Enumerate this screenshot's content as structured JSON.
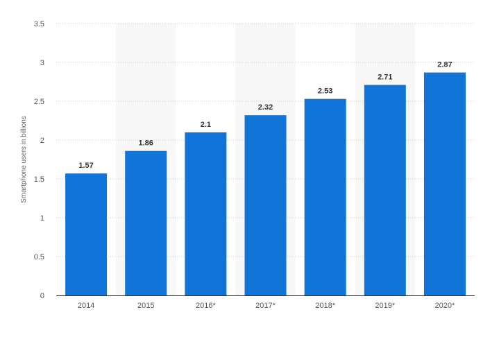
{
  "chart_data": {
    "type": "bar",
    "categories": [
      "2014",
      "2015",
      "2016*",
      "2017*",
      "2018*",
      "2019*",
      "2020*"
    ],
    "values": [
      1.57,
      1.86,
      2.1,
      2.32,
      2.53,
      2.71,
      2.87
    ],
    "value_labels": [
      "1.57",
      "1.86",
      "2.1",
      "2.32",
      "2.53",
      "2.71",
      "2.87"
    ],
    "ylabel": "Smartphone users in billions",
    "ylim": [
      0,
      3.5
    ],
    "yticks": [
      0,
      0.5,
      1,
      1.5,
      2,
      2.5,
      3,
      3.5
    ],
    "ytick_labels": [
      "0",
      "0.5",
      "1",
      "1.5",
      "2",
      "2.5",
      "3",
      "3.5"
    ],
    "grid": true,
    "legend": "none",
    "colors": {
      "bar": "#1174d9",
      "alt_band": "#f7f7f7",
      "grid": "#c8c8c8",
      "axis": "#333333"
    }
  }
}
